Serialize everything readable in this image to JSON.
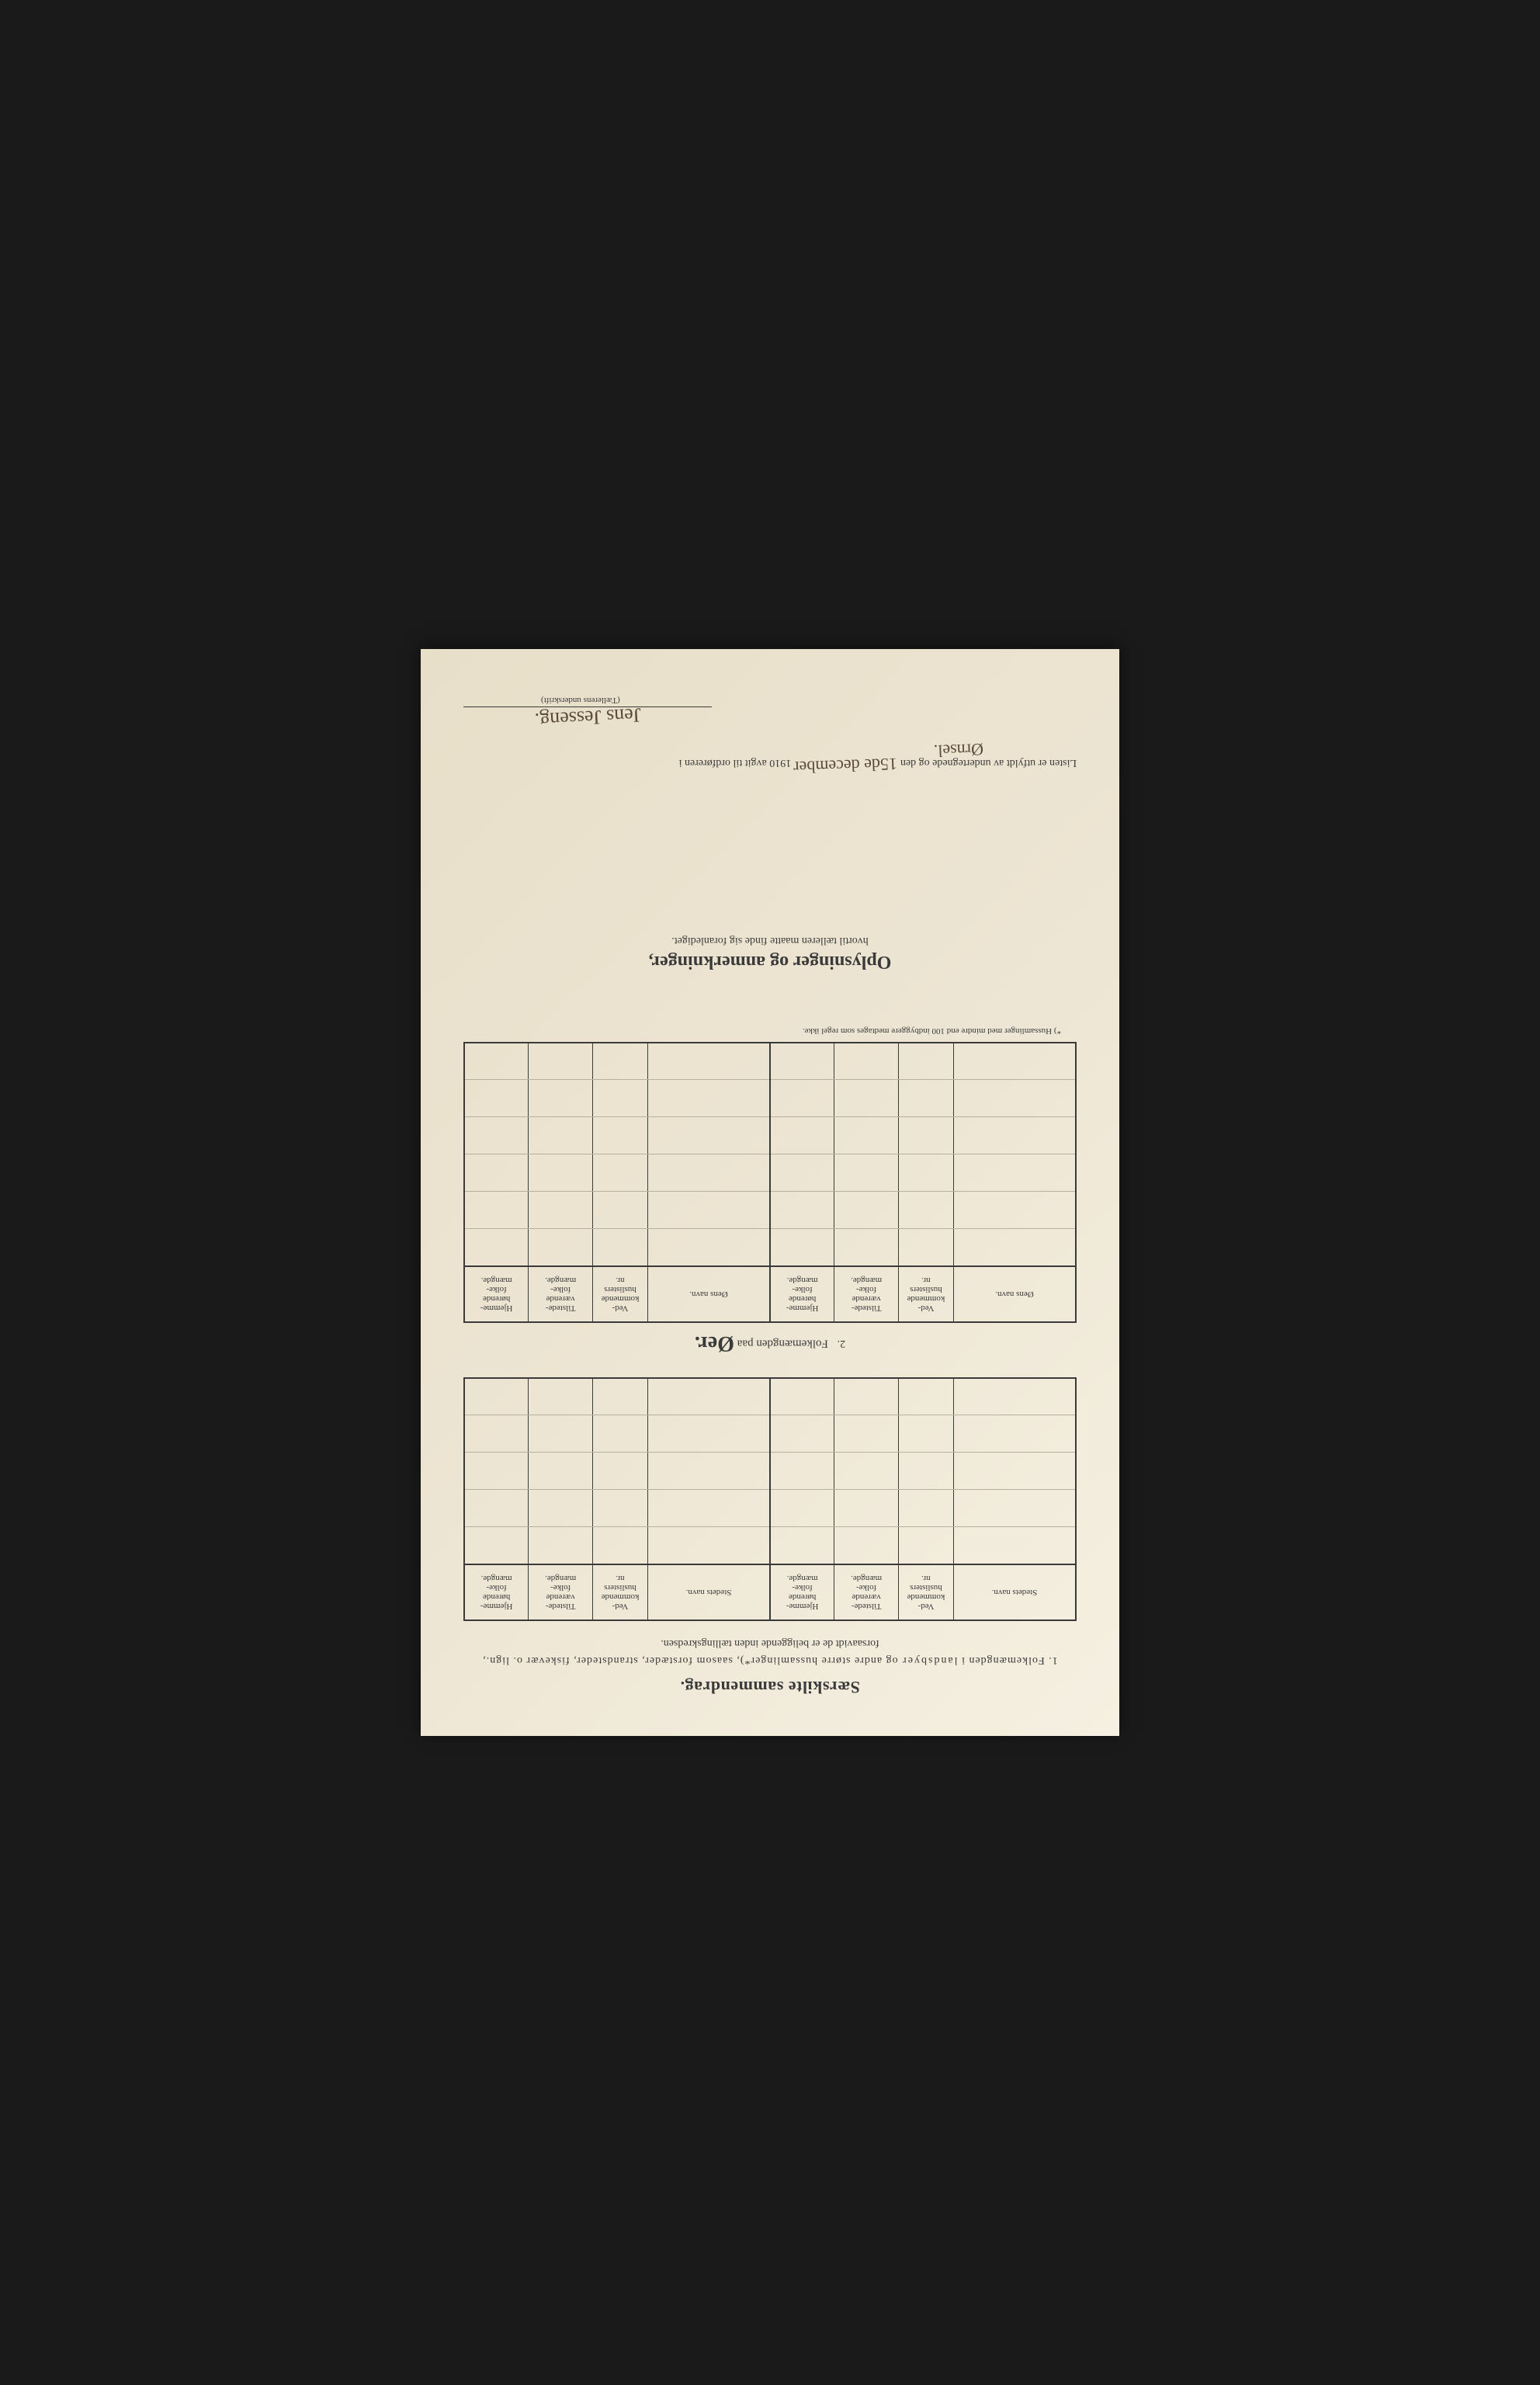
{
  "title": "Særskilte sammendrag.",
  "section1": {
    "number": "1.",
    "line1_a": "Folkemængden i ",
    "line1_b": "landsbyer",
    "line1_c": " og andre større hussamlinger*), saasom forstæder, strandsteder, fiskevær o. lign.,",
    "line2": "forsaavidt de er beliggende inden tællingskredsen."
  },
  "table_headers": {
    "stedets_navn": "Stedets navn.",
    "oens_navn": "Øens navn.",
    "vedkommende": "Ved-\nkommende\nhuslisters\nnr.",
    "tilstede": "Tilstede-\nværende\nfolke-\nmængde.",
    "hjemme": "Hjemme-\nhørende\nfolke-\nmængde."
  },
  "table1_rows": 5,
  "section2": {
    "number": "2.",
    "label": "Folkemængden paa",
    "big": "Øer."
  },
  "table2_rows": 6,
  "footnote": "*) Hussamlinger med mindre end 100 indbyggere medtages som regel ikke.",
  "oplysninger": {
    "title": "Oplysninger og anmerkninger,",
    "sub": "hvortil tælleren maatte finde sig foranlediget."
  },
  "bottom": {
    "prefix": "Listen er utfyldt av undertegnede og den",
    "date_hw": "15de december",
    "year": "1910",
    "mid": " avgit til ordføreren i",
    "place_hw": "Ørnsel.",
    "signature_hw": "Jens Jesseng.",
    "caption": "(Tællerens underskrift)"
  },
  "colors": {
    "paper": "#f0ead8",
    "ink": "#3a3a3a",
    "handwriting": "#5a4a3a",
    "background": "#1a1a1a"
  }
}
